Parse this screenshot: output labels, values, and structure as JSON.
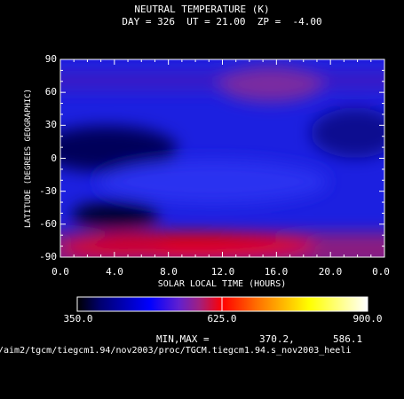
{
  "chart_data": {
    "type": "heatmap",
    "title": "NEUTRAL TEMPERATURE (K)",
    "subtitle": "DAY = 326  UT = 21.00  ZP =  -4.00",
    "xlabel": "SOLAR LOCAL TIME (HOURS)",
    "ylabel": "LATITUDE (DEGREES GEOGRAPHIC)",
    "xlim": [
      0,
      24
    ],
    "ylim": [
      -90,
      90
    ],
    "x_ticks": [
      "0.0",
      "4.0",
      "8.0",
      "12.0",
      "16.0",
      "20.0",
      "0.0"
    ],
    "y_ticks": [
      "90",
      "60",
      "30",
      "0",
      "-30",
      "-60",
      "-90"
    ],
    "colorbar": {
      "min": 350.0,
      "max": 900.0,
      "tick_labels": [
        "350.0",
        "625.0",
        "900.0"
      ],
      "colors": [
        "#000000",
        "#000070",
        "#0000ff",
        "#6020d0",
        "#a02080",
        "#ff0000",
        "#ff7000",
        "#ffff00",
        "#ffffff"
      ]
    },
    "min_max": {
      "label": "MIN,MAX =",
      "min": "370.2,",
      "max": "586.1"
    },
    "grid": false
  },
  "footer": {
    "path": "/aim2/tgcm/tiegcm1.94/nov2003/proc/TGCM.tiegcm1.94.s_nov2003_heeli"
  }
}
